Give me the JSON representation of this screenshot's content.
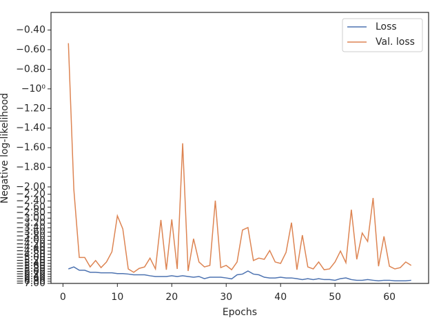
{
  "chart_data": {
    "type": "line",
    "xlabel": "Epochs",
    "ylabel": "Negative log-likelihood",
    "x": [
      1,
      2,
      3,
      4,
      5,
      6,
      7,
      8,
      9,
      10,
      11,
      12,
      13,
      14,
      15,
      16,
      17,
      18,
      19,
      20,
      21,
      22,
      23,
      24,
      25,
      26,
      27,
      28,
      29,
      30,
      31,
      32,
      33,
      34,
      35,
      36,
      37,
      38,
      39,
      40,
      41,
      42,
      43,
      44,
      45,
      46,
      47,
      48,
      49,
      50,
      51,
      52,
      53,
      54,
      55,
      56,
      57,
      58,
      59,
      60,
      61,
      62,
      63,
      64
    ],
    "series": [
      {
        "name": "Loss",
        "color": "#4c72b0",
        "values": [
          -5.8,
          -5.65,
          -5.9,
          -5.9,
          -6.06,
          -6.06,
          -6.1,
          -6.1,
          -6.1,
          -6.16,
          -6.16,
          -6.2,
          -6.26,
          -6.26,
          -6.26,
          -6.34,
          -6.4,
          -6.4,
          -6.4,
          -6.34,
          -6.4,
          -6.34,
          -6.4,
          -6.46,
          -6.4,
          -6.58,
          -6.46,
          -6.46,
          -6.46,
          -6.52,
          -6.6,
          -6.26,
          -6.2,
          -5.96,
          -6.2,
          -6.26,
          -6.46,
          -6.52,
          -6.52,
          -6.46,
          -6.52,
          -6.52,
          -6.58,
          -6.66,
          -6.58,
          -6.66,
          -6.58,
          -6.66,
          -6.66,
          -6.72,
          -6.58,
          -6.52,
          -6.66,
          -6.72,
          -6.72,
          -6.66,
          -6.72,
          -6.77,
          -6.72,
          -6.72,
          -6.77,
          -6.77,
          -6.77,
          -6.72
        ]
      },
      {
        "name": "Val. loss",
        "color": "#dd8452",
        "values": [
          -0.534,
          -2.07,
          -5.0,
          -5.0,
          -5.65,
          -5.2,
          -5.7,
          -5.3,
          -4.64,
          -2.91,
          -3.45,
          -5.8,
          -6.06,
          -5.76,
          -5.65,
          -5.04,
          -5.8,
          -3.07,
          -5.86,
          -3.05,
          -5.8,
          -1.555,
          -5.96,
          -3.92,
          -5.3,
          -5.65,
          -5.54,
          -2.39,
          -5.7,
          -5.54,
          -5.86,
          -5.3,
          -3.5,
          -3.39,
          -5.2,
          -5.04,
          -5.12,
          -4.57,
          -5.3,
          -5.4,
          -4.68,
          -3.18,
          -5.86,
          -3.74,
          -5.65,
          -5.8,
          -5.3,
          -5.86,
          -5.8,
          -5.3,
          -4.6,
          -5.35,
          -2.69,
          -5.12,
          -3.64,
          -4.06,
          -2.31,
          -5.6,
          -3.8,
          -5.6,
          -5.8,
          -5.7,
          -5.3,
          -5.54
        ]
      }
    ],
    "xlim": [
      -2.2,
      67.2
    ],
    "xticks": [
      0,
      10,
      20,
      30,
      40,
      50,
      60
    ],
    "ylim": [
      -7.0,
      -0.22
    ],
    "yticks": [
      {
        "value": -0.4,
        "label": "−0.40"
      },
      {
        "value": -0.6,
        "label": "−0.60"
      },
      {
        "value": -0.8,
        "label": "−0.80"
      },
      {
        "value": -1.0,
        "label": "−10⁰"
      },
      {
        "value": -1.2,
        "label": "−1.20"
      },
      {
        "value": -1.4,
        "label": "−1.40"
      },
      {
        "value": -1.6,
        "label": "−1.60"
      },
      {
        "value": -1.8,
        "label": "−1.80"
      },
      {
        "value": -2.0,
        "label": "−2.00"
      },
      {
        "value": -2.2,
        "label": "−2.20"
      },
      {
        "value": -2.4,
        "label": "−2.40"
      },
      {
        "value": -2.6,
        "label": "−2.60"
      },
      {
        "value": -2.8,
        "label": "−2.80"
      },
      {
        "value": -3.0,
        "label": "−3.00"
      },
      {
        "value": -3.2,
        "label": "−3.20"
      },
      {
        "value": -3.4,
        "label": "−3.40"
      },
      {
        "value": -3.6,
        "label": "−3.60"
      },
      {
        "value": -3.8,
        "label": "−3.80"
      },
      {
        "value": -4.0,
        "label": "−4.00"
      },
      {
        "value": -4.2,
        "label": "−4.20"
      },
      {
        "value": -4.4,
        "label": "−4.40"
      },
      {
        "value": -4.6,
        "label": "−4.60"
      },
      {
        "value": -4.8,
        "label": "−4.80"
      },
      {
        "value": -5.0,
        "label": "−5.00"
      },
      {
        "value": -5.2,
        "label": "−5.20"
      },
      {
        "value": -5.4,
        "label": "−5.40"
      },
      {
        "value": -5.6,
        "label": "−5.60"
      },
      {
        "value": -5.8,
        "label": "−5.80"
      },
      {
        "value": -6.0,
        "label": "−6.00"
      },
      {
        "value": -6.2,
        "label": "−6.20"
      },
      {
        "value": -6.4,
        "label": "−6.40"
      },
      {
        "value": -6.6,
        "label": "−6.60"
      },
      {
        "value": -6.8,
        "label": "−6.80"
      },
      {
        "value": -7.0,
        "label": "−7.00"
      }
    ],
    "yscale": "symlog",
    "linthresh": 2,
    "legend": "upper right"
  }
}
